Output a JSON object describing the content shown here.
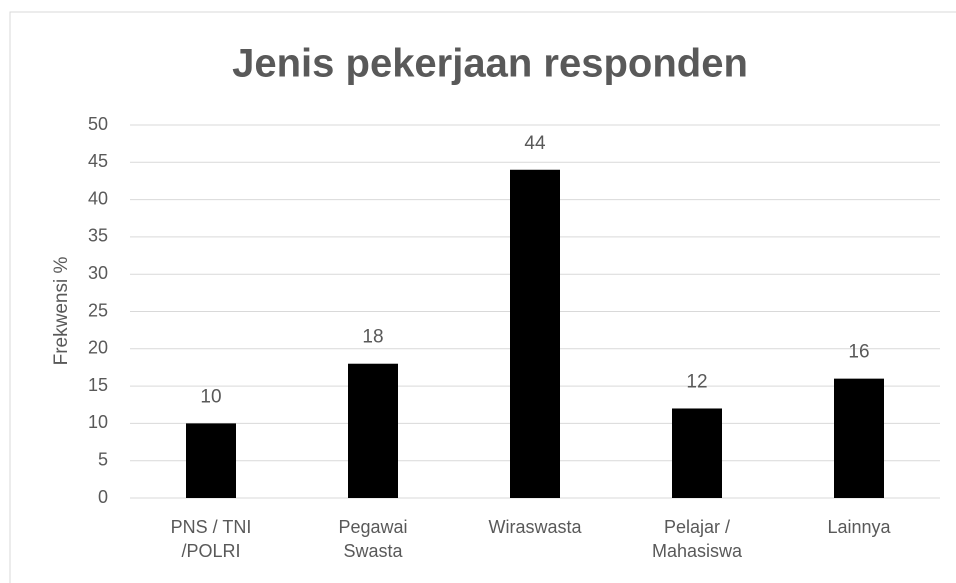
{
  "chart_data": {
    "type": "bar",
    "title": "Jenis pekerjaan responden",
    "y_label": "Frekwensi %",
    "categories": [
      "PNS / TNI /POLRI",
      "Pegawai Swasta",
      "Wiraswasta",
      "Pelajar / Mahasiswa",
      "Lainnya"
    ],
    "values": [
      10,
      18,
      44,
      12,
      16
    ],
    "color": "#000000",
    "ylim": [
      0,
      50
    ],
    "yticks": [
      0,
      5,
      10,
      15,
      20,
      25,
      30,
      35,
      40,
      45,
      50
    ],
    "grid": true,
    "data_labels": true
  }
}
